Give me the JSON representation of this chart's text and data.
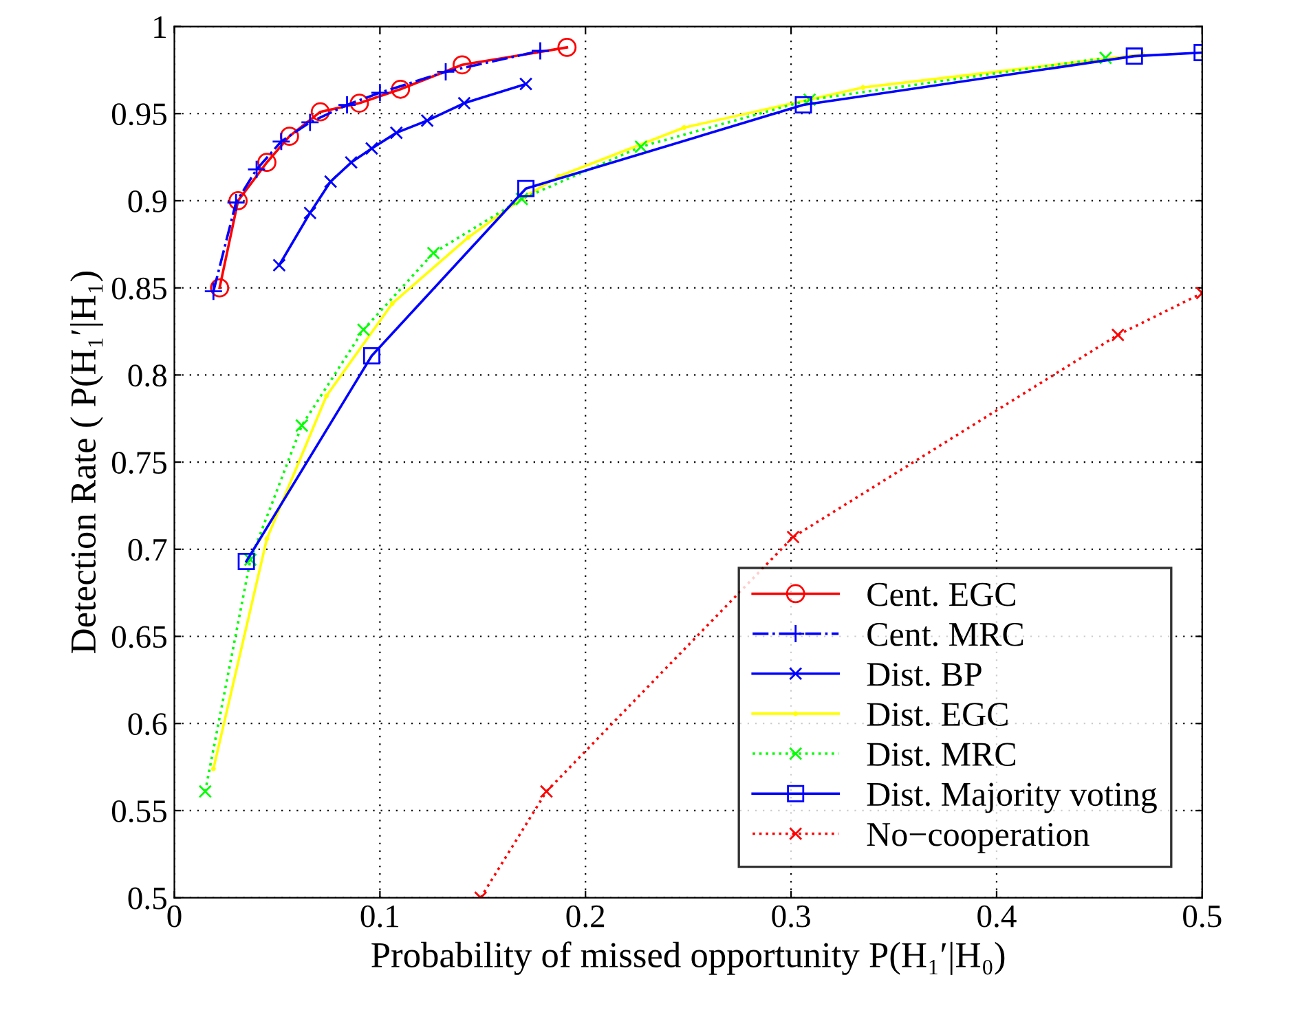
{
  "chart_data": {
    "type": "line",
    "xlabel": "Probability of missed opportunity P(H₁′|H₀)",
    "ylabel": "Detection Rate ( P(H₁′|H₁)",
    "xlim": [
      0,
      0.5
    ],
    "ylim": [
      0.5,
      1
    ],
    "xticks": [
      0,
      0.1,
      0.2,
      0.3,
      0.4,
      0.5
    ],
    "yticks": [
      0.5,
      0.55,
      0.6,
      0.65,
      0.7,
      0.75,
      0.8,
      0.85,
      0.9,
      0.95,
      1
    ],
    "grid": true,
    "legend": "bottom right",
    "series": [
      {
        "name": "Cent. EGC",
        "color": "#ff0000",
        "marker": "circle",
        "line_style": "solid",
        "x": [
          0.022,
          0.031,
          0.045,
          0.056,
          0.071,
          0.09,
          0.11,
          0.14,
          0.191
        ],
        "values": [
          0.85,
          0.9,
          0.922,
          0.937,
          0.951,
          0.956,
          0.964,
          0.978,
          0.988
        ]
      },
      {
        "name": "Cent. MRC",
        "color": "#0000ff",
        "marker": "plus",
        "line_style": "dashdot",
        "x": [
          0.019,
          0.03,
          0.04,
          0.052,
          0.066,
          0.084,
          0.1,
          0.132,
          0.178
        ],
        "values": [
          0.848,
          0.899,
          0.918,
          0.934,
          0.945,
          0.955,
          0.962,
          0.974,
          0.986
        ]
      },
      {
        "name": "Dist. BP",
        "color": "#0000ff",
        "marker": "cross",
        "line_style": "solid",
        "x": [
          0.051,
          0.066,
          0.076,
          0.086,
          0.096,
          0.108,
          0.123,
          0.141,
          0.171
        ],
        "values": [
          0.863,
          0.893,
          0.911,
          0.922,
          0.93,
          0.939,
          0.946,
          0.956,
          0.967
        ]
      },
      {
        "name": "Dist. EGC",
        "color": "#ffff00",
        "marker": "point",
        "line_style": "solid",
        "x": [
          0.019,
          0.045,
          0.074,
          0.106,
          0.143,
          0.17,
          0.187,
          0.248,
          0.335,
          0.471
        ],
        "values": [
          0.574,
          0.706,
          0.788,
          0.841,
          0.879,
          0.902,
          0.914,
          0.942,
          0.965,
          0.984
        ]
      },
      {
        "name": "Dist. MRC",
        "color": "#00ff00",
        "marker": "cross",
        "line_style": "dotted",
        "x": [
          0.015,
          0.037,
          0.062,
          0.092,
          0.126,
          0.169,
          0.227,
          0.309,
          0.453
        ],
        "values": [
          0.561,
          0.694,
          0.771,
          0.826,
          0.87,
          0.901,
          0.931,
          0.958,
          0.982
        ]
      },
      {
        "name": "Dist. Majority voting",
        "color": "#0000ff",
        "marker": "square",
        "line_style": "solid",
        "x": [
          0.035,
          0.096,
          0.171,
          0.306,
          0.467,
          0.5
        ],
        "values": [
          0.693,
          0.811,
          0.907,
          0.955,
          0.983,
          0.985
        ]
      },
      {
        "name": "No−cooperation",
        "color": "#ff0000",
        "marker": "cross",
        "line_style": "dotted",
        "x": [
          0.149,
          0.181,
          0.301,
          0.459,
          0.5
        ],
        "values": [
          0.5,
          0.561,
          0.707,
          0.823,
          0.847
        ]
      }
    ]
  }
}
